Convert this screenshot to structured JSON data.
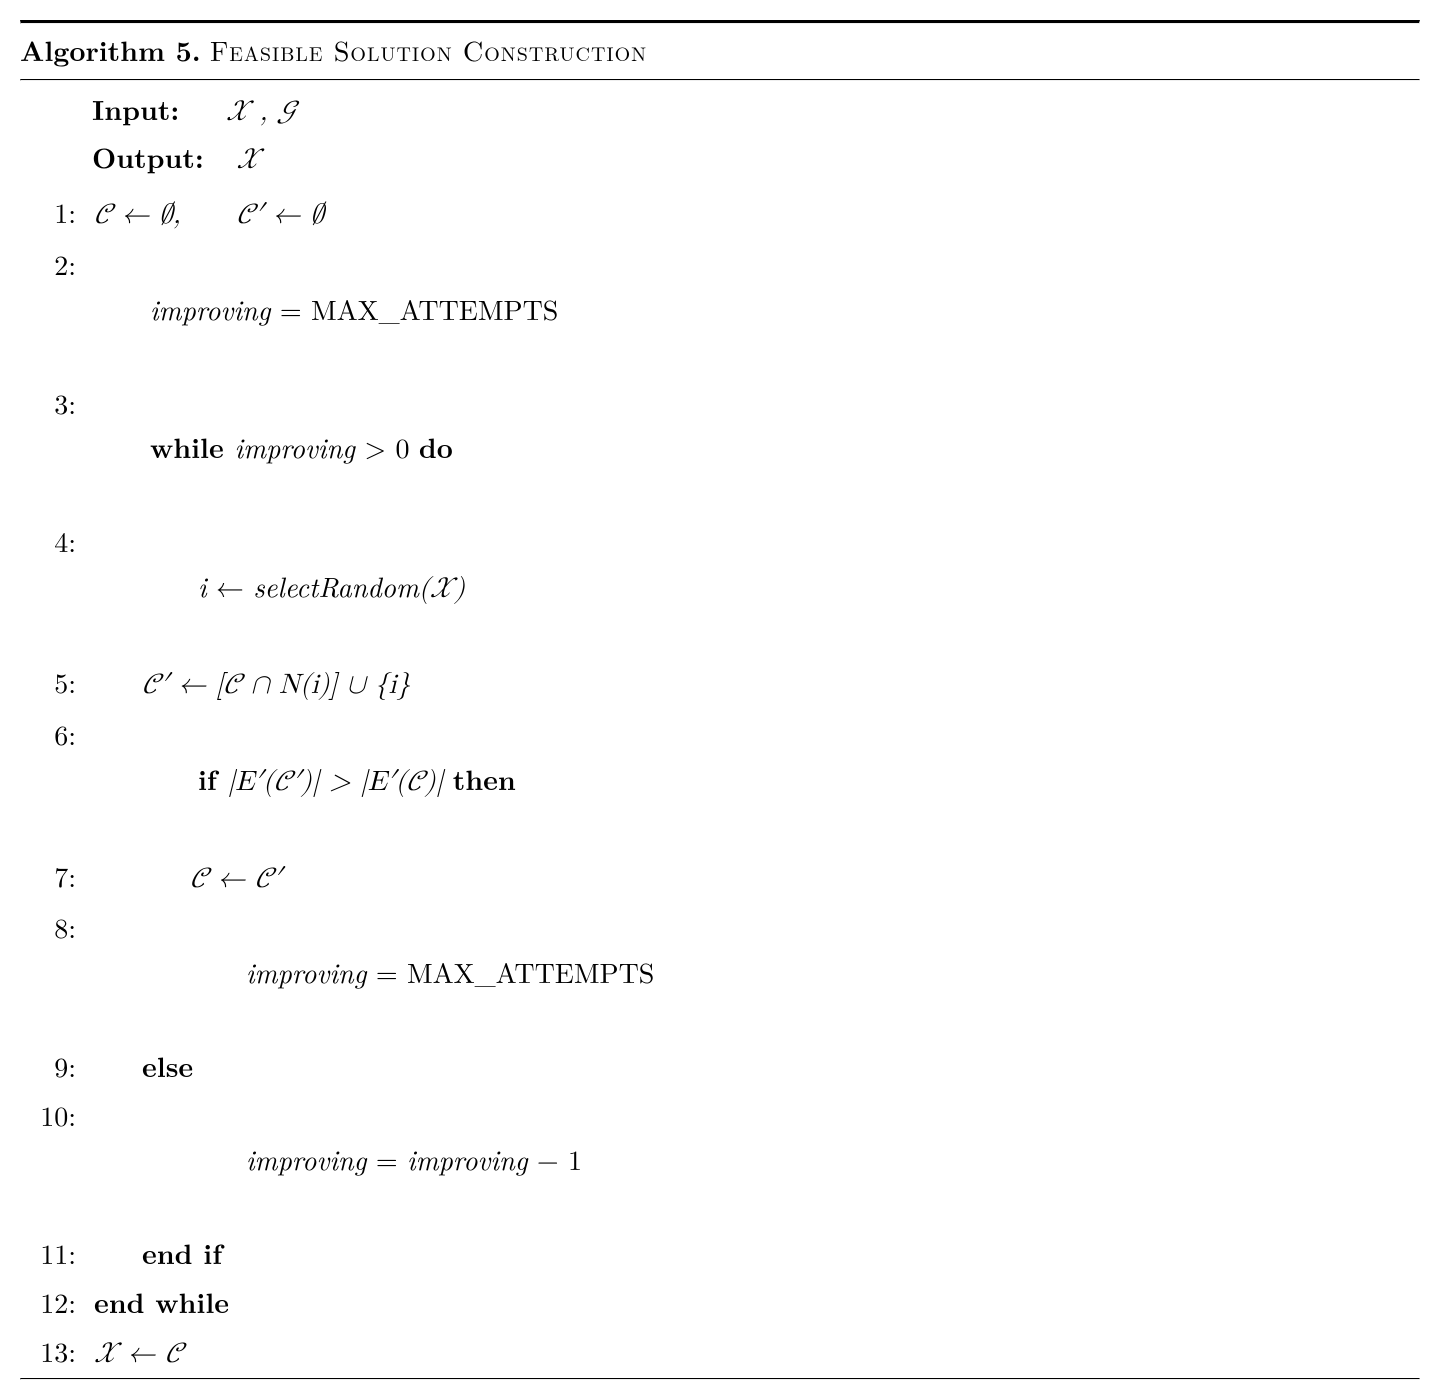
{
  "header": {
    "label": "Algorithm 5.",
    "title": "Feasible Solution Construction"
  },
  "io": {
    "input_label": "Input:",
    "input_value": "𝒳  ,  𝒢",
    "output_label": "Output:",
    "output_value": "𝒳"
  },
  "lines": {
    "l1_no": "1:",
    "l1": "𝒞 ← ∅,      𝒞′ ← ∅",
    "l2_no": "2:",
    "l2_a": "improving",
    "l2_b": " = MAX_ATTEMPTS",
    "l3_no": "3:",
    "l3_a": "while ",
    "l3_b": "improving",
    "l3_c": " > 0 ",
    "l3_d": "do",
    "l4_no": "4:",
    "l4_a": "i",
    "l4_b": " ← ",
    "l4_c": "selectRandom",
    "l4_d": "(𝒳)",
    "l5_no": "5:",
    "l5": "𝒞′ ← [𝒞 ∩ N(i)] ∪ {i}",
    "l6_no": "6:",
    "l6_a": "if ",
    "l6_b": "|E′(𝒞′)| > |E′(𝒞)| ",
    "l6_c": "then",
    "l7_no": "7:",
    "l7": "𝒞 ← 𝒞′",
    "l8_no": "8:",
    "l8_a": "improving",
    "l8_b": " = MAX_ATTEMPTS",
    "l9_no": "9:",
    "l9": "else",
    "l10_no": "10:",
    "l10_a": "improving",
    "l10_b": " = ",
    "l10_c": "improving",
    "l10_d": " − 1",
    "l11_no": "11:",
    "l11": "end if",
    "l12_no": "12:",
    "l12": "end while",
    "l13_no": "13:",
    "l13": "𝒳 ← 𝒞"
  }
}
